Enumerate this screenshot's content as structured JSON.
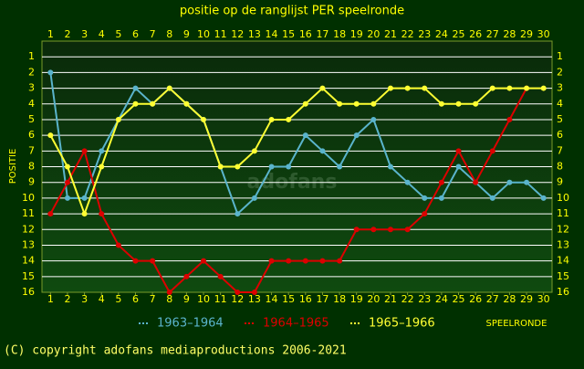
{
  "chart_data": {
    "type": "line",
    "title": "positie op de ranglijst PER speelronde",
    "x_label": "SPEELRONDE",
    "y_label": "POSITIE",
    "watermark": "adofans",
    "footer": "(C) copyright adofans mediaproductions 2006-2021",
    "x": [
      1,
      2,
      3,
      4,
      5,
      6,
      7,
      8,
      9,
      10,
      11,
      12,
      13,
      14,
      15,
      16,
      17,
      18,
      19,
      20,
      21,
      22,
      23,
      24,
      25,
      26,
      27,
      28,
      29,
      30
    ],
    "xlim": [
      0.5,
      30.5
    ],
    "xticks": [
      1,
      2,
      3,
      4,
      5,
      6,
      7,
      8,
      9,
      10,
      11,
      12,
      13,
      14,
      15,
      16,
      17,
      18,
      19,
      20,
      21,
      22,
      23,
      24,
      25,
      26,
      27,
      28,
      29,
      30
    ],
    "ylim": [
      0,
      16
    ],
    "y_inverted": true,
    "yticks": [
      1,
      2,
      3,
      4,
      5,
      6,
      7,
      8,
      9,
      10,
      11,
      12,
      13,
      14,
      15,
      16
    ],
    "grid": true,
    "series": [
      {
        "name": "1963–1964",
        "color": "#5ab4cc",
        "values": [
          2,
          10,
          10,
          7,
          5,
          3,
          4,
          3,
          4,
          5,
          8,
          11,
          10,
          8,
          8,
          6,
          7,
          8,
          6,
          5,
          8,
          9,
          10,
          10,
          8,
          9,
          10,
          9,
          9,
          10
        ]
      },
      {
        "name": "1964–1965",
        "color": "#dd0000",
        "values": [
          11,
          9,
          7,
          11,
          13,
          14,
          14,
          16,
          15,
          14,
          15,
          16,
          16,
          14,
          14,
          14,
          14,
          14,
          12,
          12,
          12,
          12,
          11,
          9,
          7,
          9,
          7,
          5,
          3,
          null
        ]
      },
      {
        "name": "1965–1966",
        "color": "#ffff33",
        "values": [
          6,
          8,
          11,
          8,
          5,
          4,
          4,
          3,
          4,
          5,
          8,
          8,
          7,
          5,
          5,
          4,
          3,
          4,
          4,
          4,
          3,
          3,
          3,
          4,
          4,
          4,
          3,
          3,
          3,
          3
        ]
      }
    ]
  }
}
